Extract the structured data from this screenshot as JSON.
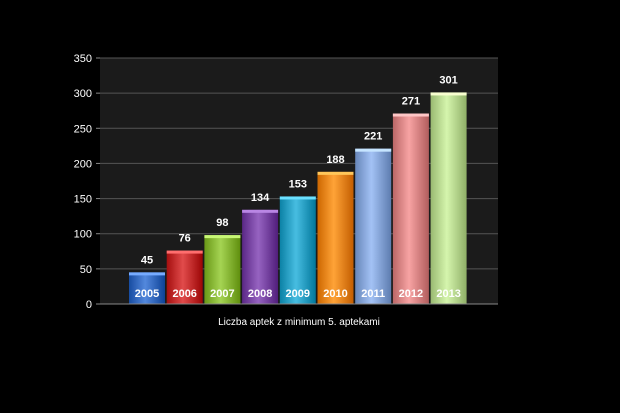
{
  "chart_data": {
    "type": "bar",
    "categories": [
      "2005",
      "2006",
      "2007",
      "2008",
      "2009",
      "2010",
      "2011",
      "2012",
      "2013"
    ],
    "values": [
      45,
      76,
      98,
      134,
      153,
      188,
      221,
      271,
      301
    ],
    "xlabel": "Liczba aptek z minimum 5. aptekami",
    "ylabel": "",
    "ylim": [
      0,
      350
    ],
    "yticks": [
      0,
      50,
      100,
      150,
      200,
      250,
      300,
      350
    ],
    "grid": true,
    "colors": [
      "#3a6fc4",
      "#c83232",
      "#8cbb3a",
      "#7d4aa8",
      "#2ea4c8",
      "#f08a1e",
      "#8aa9dc",
      "#de8a8a",
      "#bcdc94"
    ]
  },
  "colors": {
    "background": "#000000",
    "plot_background": "#1b1b1b",
    "gridline": "#555555",
    "text": "#ffffff"
  }
}
